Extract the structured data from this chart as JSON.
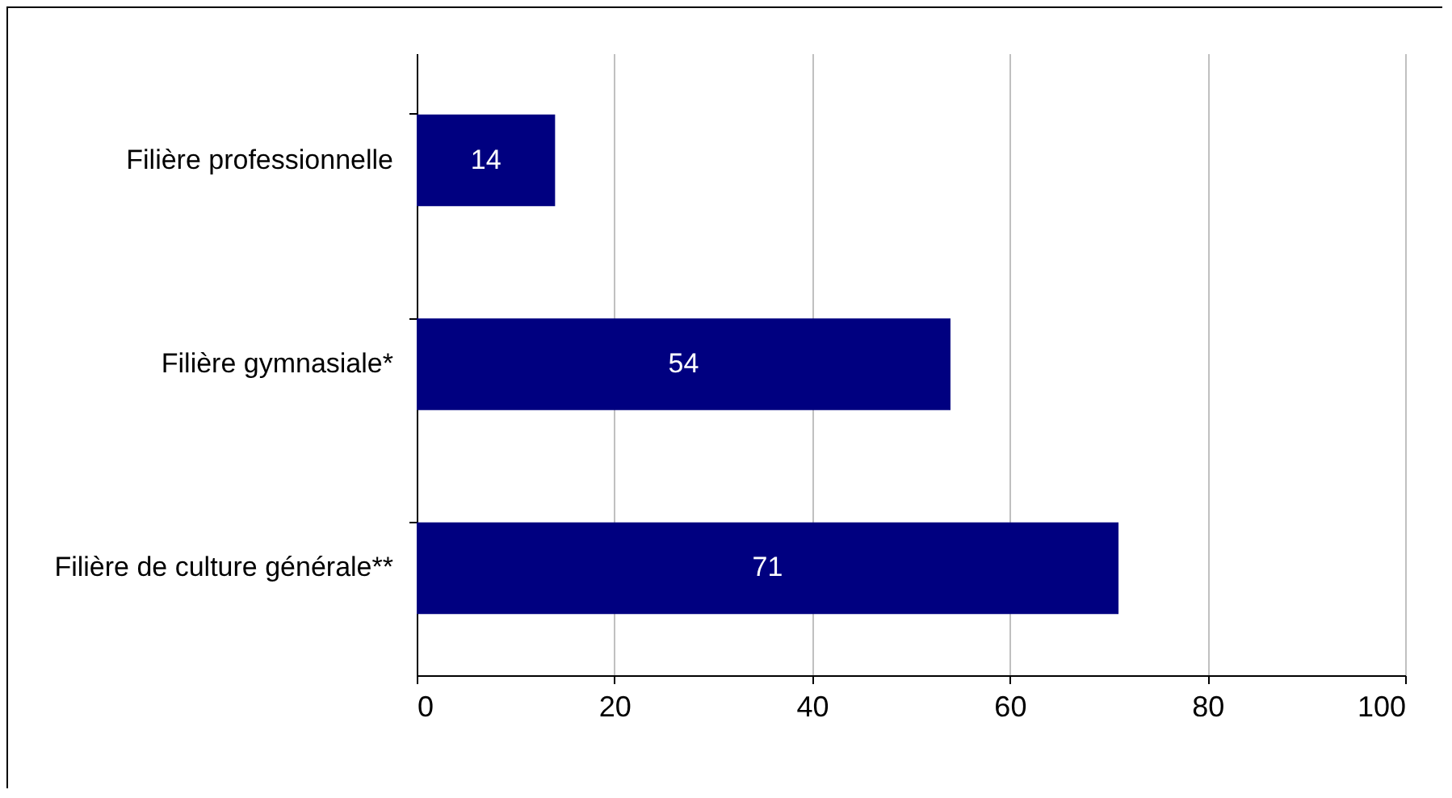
{
  "chart_data": {
    "type": "bar",
    "orientation": "horizontal",
    "categories": [
      "Filière professionnelle",
      "Filière gymnasiale*",
      "Filière de culture générale**"
    ],
    "values": [
      14,
      54,
      71
    ],
    "color": "#000080",
    "data_labels": true,
    "xlim": [
      0,
      100
    ],
    "xticks": [
      0,
      20,
      40,
      60,
      80,
      100
    ],
    "grid": "x"
  }
}
